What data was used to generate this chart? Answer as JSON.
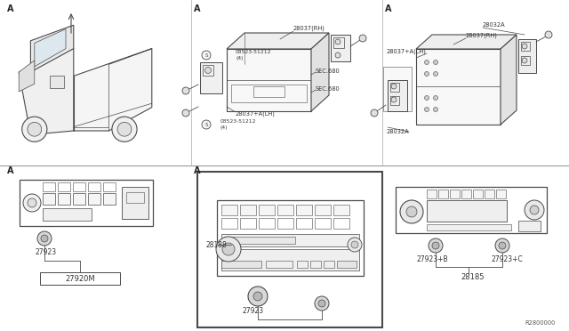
{
  "bg_color": "#ffffff",
  "lc": "#4a4a4a",
  "lc_light": "#888888",
  "fs": 5.5,
  "fs_small": 4.8,
  "fs_label": 6.0,
  "labels": {
    "28037RH_mid": "28037(RH)",
    "28037RH_right": "28037(RH)",
    "28032A_top": "28032A",
    "28032A_bot": "28032A",
    "08523_top_label": "08523-51212",
    "08523_top_qty": "(4)",
    "08523_bot_label": "08523-51212",
    "08523_bot_qty": "(4)",
    "28037ALH_mid": "28037+A(LH)",
    "28037ALH_right": "28037+A(LH)",
    "sec680_top": "SEC.680",
    "sec680_bot": "SEC.680",
    "A1": "A",
    "A2": "A",
    "A3": "A",
    "A4": "A",
    "A5": "A",
    "27923_left": "27923",
    "27920M": "27920M",
    "28188": "28188",
    "27923_mid": "27923",
    "27923B": "27923+B",
    "27923C": "27923+C",
    "28185": "28185",
    "diagram_id": "R2800000"
  }
}
